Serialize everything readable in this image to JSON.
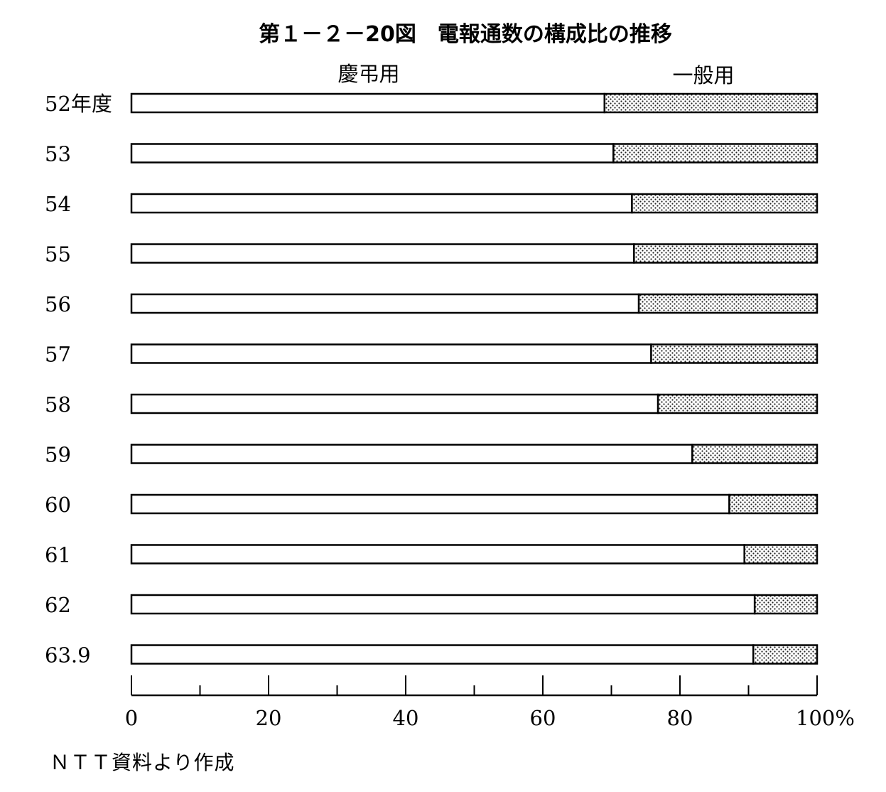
{
  "chart_data": {
    "type": "bar",
    "orientation": "horizontal",
    "stacked": true,
    "percent": true,
    "title": "第１－２－20図　電報通数の構成比の推移",
    "categories": [
      "52年度",
      "53",
      "54",
      "55",
      "56",
      "57",
      "58",
      "59",
      "60",
      "61",
      "62",
      "63.9"
    ],
    "series": [
      {
        "name": "慶弔用",
        "values": [
          69.0,
          70.3,
          73.0,
          73.3,
          74.0,
          75.8,
          76.8,
          81.8,
          87.2,
          89.4,
          90.9,
          90.7
        ],
        "color": "#ffffff",
        "pattern": "none"
      },
      {
        "name": "一般用",
        "values": [
          31.0,
          29.7,
          27.0,
          26.7,
          26.0,
          24.2,
          23.2,
          18.2,
          12.8,
          10.6,
          9.1,
          9.3
        ],
        "color": "#ffffff",
        "pattern": "dots"
      }
    ],
    "xlim": [
      0,
      100
    ],
    "xticks": [
      "0",
      "20",
      "40",
      "60",
      "80",
      "100%"
    ],
    "xtick_values": [
      0,
      20,
      40,
      60,
      80,
      100
    ],
    "minor_tick_step": 10,
    "xlabel": "",
    "ylabel": "",
    "legend_position": "top",
    "grid": false
  },
  "source": "ＮＴＴ資料より作成"
}
